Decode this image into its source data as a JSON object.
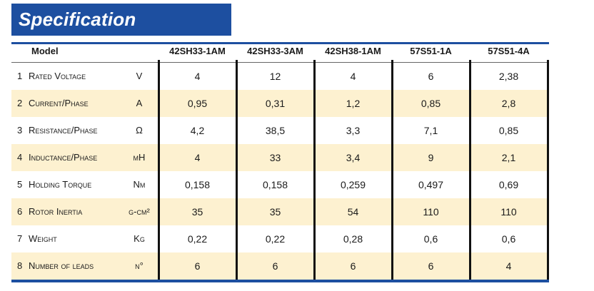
{
  "header": {
    "title": "Specification"
  },
  "table": {
    "model_label": "Model",
    "models": [
      "42SH33-1AM",
      "42SH33-3AM",
      "42SH38-1AM",
      "57S51-1A",
      "57S51-4A"
    ],
    "rows": [
      {
        "num": "1",
        "label": "Rated Voltage",
        "unit": "V",
        "values": [
          "4",
          "12",
          "4",
          "6",
          "2,38"
        ]
      },
      {
        "num": "2",
        "label": "Current/Phase",
        "unit": "A",
        "values": [
          "0,95",
          "0,31",
          "1,2",
          "0,85",
          "2,8"
        ]
      },
      {
        "num": "3",
        "label": "Resistance/Phase",
        "unit": "Ω",
        "values": [
          "4,2",
          "38,5",
          "3,3",
          "7,1",
          "0,85"
        ]
      },
      {
        "num": "4",
        "label": "Inductance/Phase",
        "unit": "mH",
        "values": [
          "4",
          "33",
          "3,4",
          "9",
          "2,1"
        ]
      },
      {
        "num": "5",
        "label": "Holding Torque",
        "unit": "Nm",
        "values": [
          "0,158",
          "0,158",
          "0,259",
          "0,497",
          "0,69"
        ]
      },
      {
        "num": "6",
        "label": "Rotor Inertia",
        "unit": "g-cm²",
        "values": [
          "35",
          "35",
          "54",
          "110",
          "110"
        ]
      },
      {
        "num": "7",
        "label": "Weight",
        "unit": "Kg",
        "values": [
          "0,22",
          "0,22",
          "0,28",
          "0,6",
          "0,6"
        ]
      },
      {
        "num": "8",
        "label": "Number of leads",
        "unit": "n°",
        "values": [
          "6",
          "6",
          "6",
          "6",
          "4"
        ]
      }
    ]
  }
}
